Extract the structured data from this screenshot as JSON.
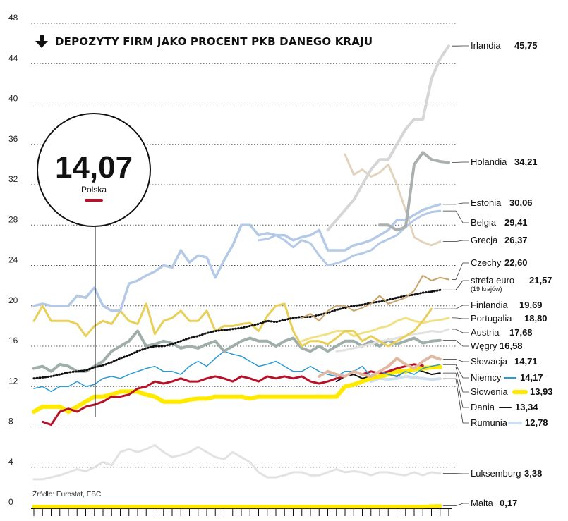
{
  "title": "DEPOZYTY FIRM JAKO PROCENT PKB DANEGO KRAJU",
  "source": "Źródło: Eurostat, EBC",
  "chart_data": {
    "type": "line",
    "ylim": [
      0,
      48
    ],
    "yticks": [
      0,
      4,
      8,
      12,
      16,
      20,
      24,
      28,
      32,
      36,
      40,
      44,
      48
    ],
    "grid": "horizontal dotted",
    "n_periods": 49,
    "callout": {
      "value": "14,07",
      "name": "Polska",
      "series": "Polska"
    },
    "series": [
      {
        "name": "Irlandia",
        "value_label": "45,75",
        "color": "#d6d6d6",
        "width": 4,
        "values": [
          27.5,
          28.5,
          29.5,
          30.5,
          32,
          33.5,
          34.5,
          34.5,
          36,
          37.5,
          38.5,
          38.5,
          42.5,
          44.5,
          45.75
        ],
        "start": 34
      },
      {
        "name": "Holandia",
        "value_label": "34,21",
        "color": "#a9b0ae",
        "width": 4,
        "values": [
          28,
          28,
          27.5,
          27.8,
          34,
          35.2,
          34.5,
          34.3,
          34.21
        ],
        "start": 40
      },
      {
        "name": "Estonia",
        "value_label": "30,06",
        "color": "#b3c9e6",
        "width": 3.5,
        "values": [
          20,
          20.2,
          20,
          20,
          20,
          21,
          20.8,
          21.8,
          20,
          19.5,
          19.5,
          22.2,
          22.5,
          23,
          23.4,
          24,
          23.8,
          25.5,
          24.3,
          25,
          24.8,
          22.8,
          24.5,
          26,
          28,
          28,
          27,
          27.2,
          27,
          27,
          26.5,
          26.8,
          27,
          27.5,
          25.5,
          25.5,
          25.5,
          26,
          26.2,
          26.5,
          27,
          27.5,
          28.5,
          28.5,
          29,
          29.5,
          29.8,
          30.06
        ],
        "start": 0
      },
      {
        "name": "Belgia",
        "value_label": "29,41",
        "color": "#b3c9e6",
        "width": 3,
        "values": [
          26.5,
          26.6,
          27,
          26.5,
          25.8,
          26.5,
          26.2,
          25,
          24,
          24.2,
          24.5,
          25,
          25.2,
          25.5,
          26.2,
          26.6,
          27,
          27.8,
          28.5,
          29,
          29.3,
          29.41
        ],
        "start": 26
      },
      {
        "name": "Grecja",
        "value_label": "26,37",
        "color": "#e2d3bd",
        "width": 3,
        "values": [
          35,
          33,
          33.5,
          32.8,
          33.2,
          34,
          32,
          29.5,
          26.8,
          26.3,
          26,
          26.37
        ],
        "start": 36
      },
      {
        "name": "Czechy",
        "value_label": "22,60",
        "color": "#c8a36a",
        "width": 2,
        "values": [
          18.8,
          19.2,
          18.5,
          19.5,
          20,
          20,
          19.5,
          19.8,
          20.2,
          21,
          20.2,
          20.5,
          20.8,
          21.5,
          23,
          22.5,
          22.8,
          22.6
        ],
        "start": 31
      },
      {
        "name": "strefa euro",
        "note": "(19 krajów)",
        "value_label": "21,57",
        "color": "#111111",
        "width": 2,
        "dotted": true,
        "values": [
          12.8,
          12.9,
          13.0,
          13.2,
          13.4,
          13.5,
          13.6,
          13.9,
          14.1,
          14.4,
          14.8,
          15.1,
          15.5,
          15.8,
          16.0,
          16.0,
          16.2,
          16.5,
          16.8,
          17.0,
          17.3,
          17.5,
          17.6,
          17.7,
          17.8,
          18.0,
          18.2,
          18.5,
          18.4,
          18.6,
          18.8,
          18.9,
          18.9,
          19.1,
          19.3,
          19.6,
          19.8,
          20.0,
          20.1,
          20.3,
          20.4,
          20.6,
          20.8,
          21.0,
          21.1,
          21.3,
          21.4,
          21.57
        ],
        "start": 0
      },
      {
        "name": "Finlandia",
        "value_label": "19,69",
        "color": "#e8cf58",
        "width": 3,
        "values": [
          18.5,
          20,
          18.5,
          18.5,
          18.5,
          18.2,
          17,
          18,
          18.5,
          18.2,
          19.5,
          18.5,
          18.2,
          20.2,
          17.2,
          18.5,
          18.8,
          19.5,
          18.5,
          18.5,
          19.5,
          17.5,
          18,
          18,
          18.2,
          18.3,
          17.5,
          19,
          20,
          20.2,
          17.5,
          16,
          16.5,
          16.5,
          16.2,
          16.8,
          17.5,
          17.5,
          16.5,
          17,
          16.5,
          16,
          16.5,
          17,
          17.5,
          18.5,
          19.69
        ],
        "start": 0
      },
      {
        "name": "Portugalia",
        "value_label": "18,80",
        "color": "#f0e186",
        "width": 3,
        "values": [
          16.5,
          16.8,
          17,
          17.2,
          17.5,
          17.5,
          17,
          17.3,
          17.5,
          17.8,
          18,
          18.5,
          18.8,
          18.5,
          18.3,
          18.5,
          18.6,
          18.8
        ],
        "start": 31
      },
      {
        "name": "Austria",
        "value_label": "17,68",
        "color": "#e2e2e2",
        "width": 3,
        "values": [
          15.5,
          15.6,
          15.8,
          16,
          16.2,
          16.5,
          16.6,
          16.8,
          17,
          17.2,
          17.3,
          17.5,
          17.4,
          17.68
        ],
        "start": 35
      },
      {
        "name": "Węgry",
        "value_label": "16,58",
        "color": "#9fadab",
        "width": 4,
        "values": [
          13.8,
          14,
          13.5,
          14.2,
          14,
          13.5,
          13.5,
          14,
          14.5,
          15.5,
          16,
          16.5,
          17.5,
          16,
          16.2,
          16.5,
          16.3,
          15.8,
          16,
          15.8,
          16.2,
          16.5,
          15.5,
          16,
          16.5,
          16.8,
          16.5,
          16.5,
          16,
          16.5,
          16.8,
          15.8,
          15.5,
          16,
          15.5,
          16,
          16.5,
          16.5,
          16,
          16.5,
          16,
          16.6,
          16.2,
          16.5,
          16.8,
          16.3,
          16.5,
          16.58
        ],
        "start": 0
      },
      {
        "name": "Słowacja",
        "value_label": "14,71",
        "color": "#e0b7a0",
        "width": 4,
        "values": [
          13,
          13.5,
          13.2,
          13,
          13.5,
          13.2,
          13,
          13.5,
          14,
          14.8,
          14.2,
          13.8,
          14.5,
          15,
          14.71
        ],
        "start": 33
      },
      {
        "name": "Niemcy",
        "value_label": "14,17",
        "color": "#2a9ad3",
        "width": 1.5,
        "values": [
          11.8,
          12,
          11.5,
          12,
          12,
          12.5,
          12,
          12.2,
          12.8,
          13,
          12.8,
          13.2,
          13.5,
          13.8,
          14,
          13.5,
          13.5,
          13.2,
          14,
          14.5,
          14,
          14.8,
          15.5,
          15.2,
          15,
          14.5,
          14,
          14.2,
          14.5,
          14,
          13.5,
          13.5,
          14,
          13.5,
          13.2,
          13,
          13.5,
          13.5,
          14,
          13,
          13.5,
          13.2,
          13,
          13.5,
          13.2,
          13.8,
          14,
          14.17
        ],
        "start": 0
      },
      {
        "name": "Polska",
        "value_label": "14,07",
        "color": "#b8122a",
        "width": 3,
        "values": [
          8.5,
          8.2,
          9.5,
          9.8,
          9.5,
          10,
          10.2,
          10.5,
          11,
          11,
          11.2,
          11.8,
          12,
          12.5,
          12.3,
          12.5,
          12.8,
          12.5,
          12.5,
          12.8,
          13,
          12.8,
          12.5,
          13,
          12.8,
          12.5,
          13,
          12.8,
          13,
          12.8,
          13,
          12.5,
          12.3,
          12.5,
          12.8,
          13,
          13.5,
          13.2,
          13.5,
          13.3,
          13.5,
          13.8,
          14,
          14.2,
          14.07
        ],
        "start": 1
      },
      {
        "name": "Słowenia",
        "value_label": "13,93",
        "color": "#ffea00",
        "width": 6,
        "values": [
          9.5,
          10,
          10,
          10,
          9.5,
          10,
          10.5,
          11,
          11,
          11.2,
          11.5,
          11.5,
          11.5,
          11.2,
          11,
          10.5,
          10.5,
          10.5,
          10.7,
          10.8,
          10.8,
          11,
          11,
          11,
          11,
          10.8,
          11,
          11,
          11,
          11,
          11,
          11,
          11,
          11,
          11,
          11,
          12,
          12.2,
          12.5,
          12.8,
          13,
          13.2,
          13.5,
          13.5,
          13.7,
          13.8,
          13.9,
          13.93
        ],
        "start": 0
      },
      {
        "name": "Dania",
        "value_label": "13,34",
        "color": "#111111",
        "width": 2,
        "values": [
          12.5,
          13,
          13.2,
          12.8,
          13,
          13.5,
          13.2,
          13,
          13.5,
          13.8,
          13.5,
          13.2,
          13.34
        ],
        "start": 35
      },
      {
        "name": "Rumunia",
        "value_label": "12,78",
        "color": "#cfdff0",
        "width": 4,
        "values": [
          12.5,
          12.8,
          12.7,
          12.8,
          13,
          12.9,
          12.8,
          12.7,
          12.78
        ],
        "start": 39
      },
      {
        "name": "Luksemburg",
        "value_label": "3,38",
        "color": "#e2e2e2",
        "width": 3,
        "values": [
          2.8,
          2.8,
          3,
          3.2,
          3.5,
          3.8,
          3.6,
          4,
          4.5,
          4.2,
          5.5,
          5.8,
          5.5,
          5.8,
          6.2,
          5.5,
          5,
          5.2,
          5.5,
          6,
          5.5,
          5,
          4.8,
          5.5,
          5,
          4.5,
          3.5,
          3,
          3,
          3.2,
          3.5,
          3.5,
          3.2,
          3.2,
          3.5,
          3.8,
          3.5,
          3.6,
          3.5,
          3.2,
          3.5,
          3.5,
          3.3,
          3.2,
          3.5,
          3.2,
          3.5,
          3.38
        ],
        "start": 0
      },
      {
        "name": "Malta",
        "value_label": "0,17",
        "color": "#ffea00",
        "width": 5,
        "values": [
          0.1,
          0.1,
          0.1,
          0.1,
          0.1,
          0.1,
          0.1,
          0.1,
          0.1,
          0.1,
          0.1,
          0.1,
          0.1,
          0.1,
          0.1,
          0.1,
          0.1,
          0.1,
          0.1,
          0.1,
          0.1,
          0.1,
          0.1,
          0.1,
          0.1,
          0.1,
          0.1,
          0.1,
          0.1,
          0.1,
          0.1,
          0.1,
          0.1,
          0.1,
          0.1,
          0.1,
          0.1,
          0.1,
          0.1,
          0.1,
          0.1,
          0.1,
          0.1,
          0.1,
          0.1,
          0.1,
          0.15,
          0.17
        ],
        "start": 0
      }
    ]
  }
}
